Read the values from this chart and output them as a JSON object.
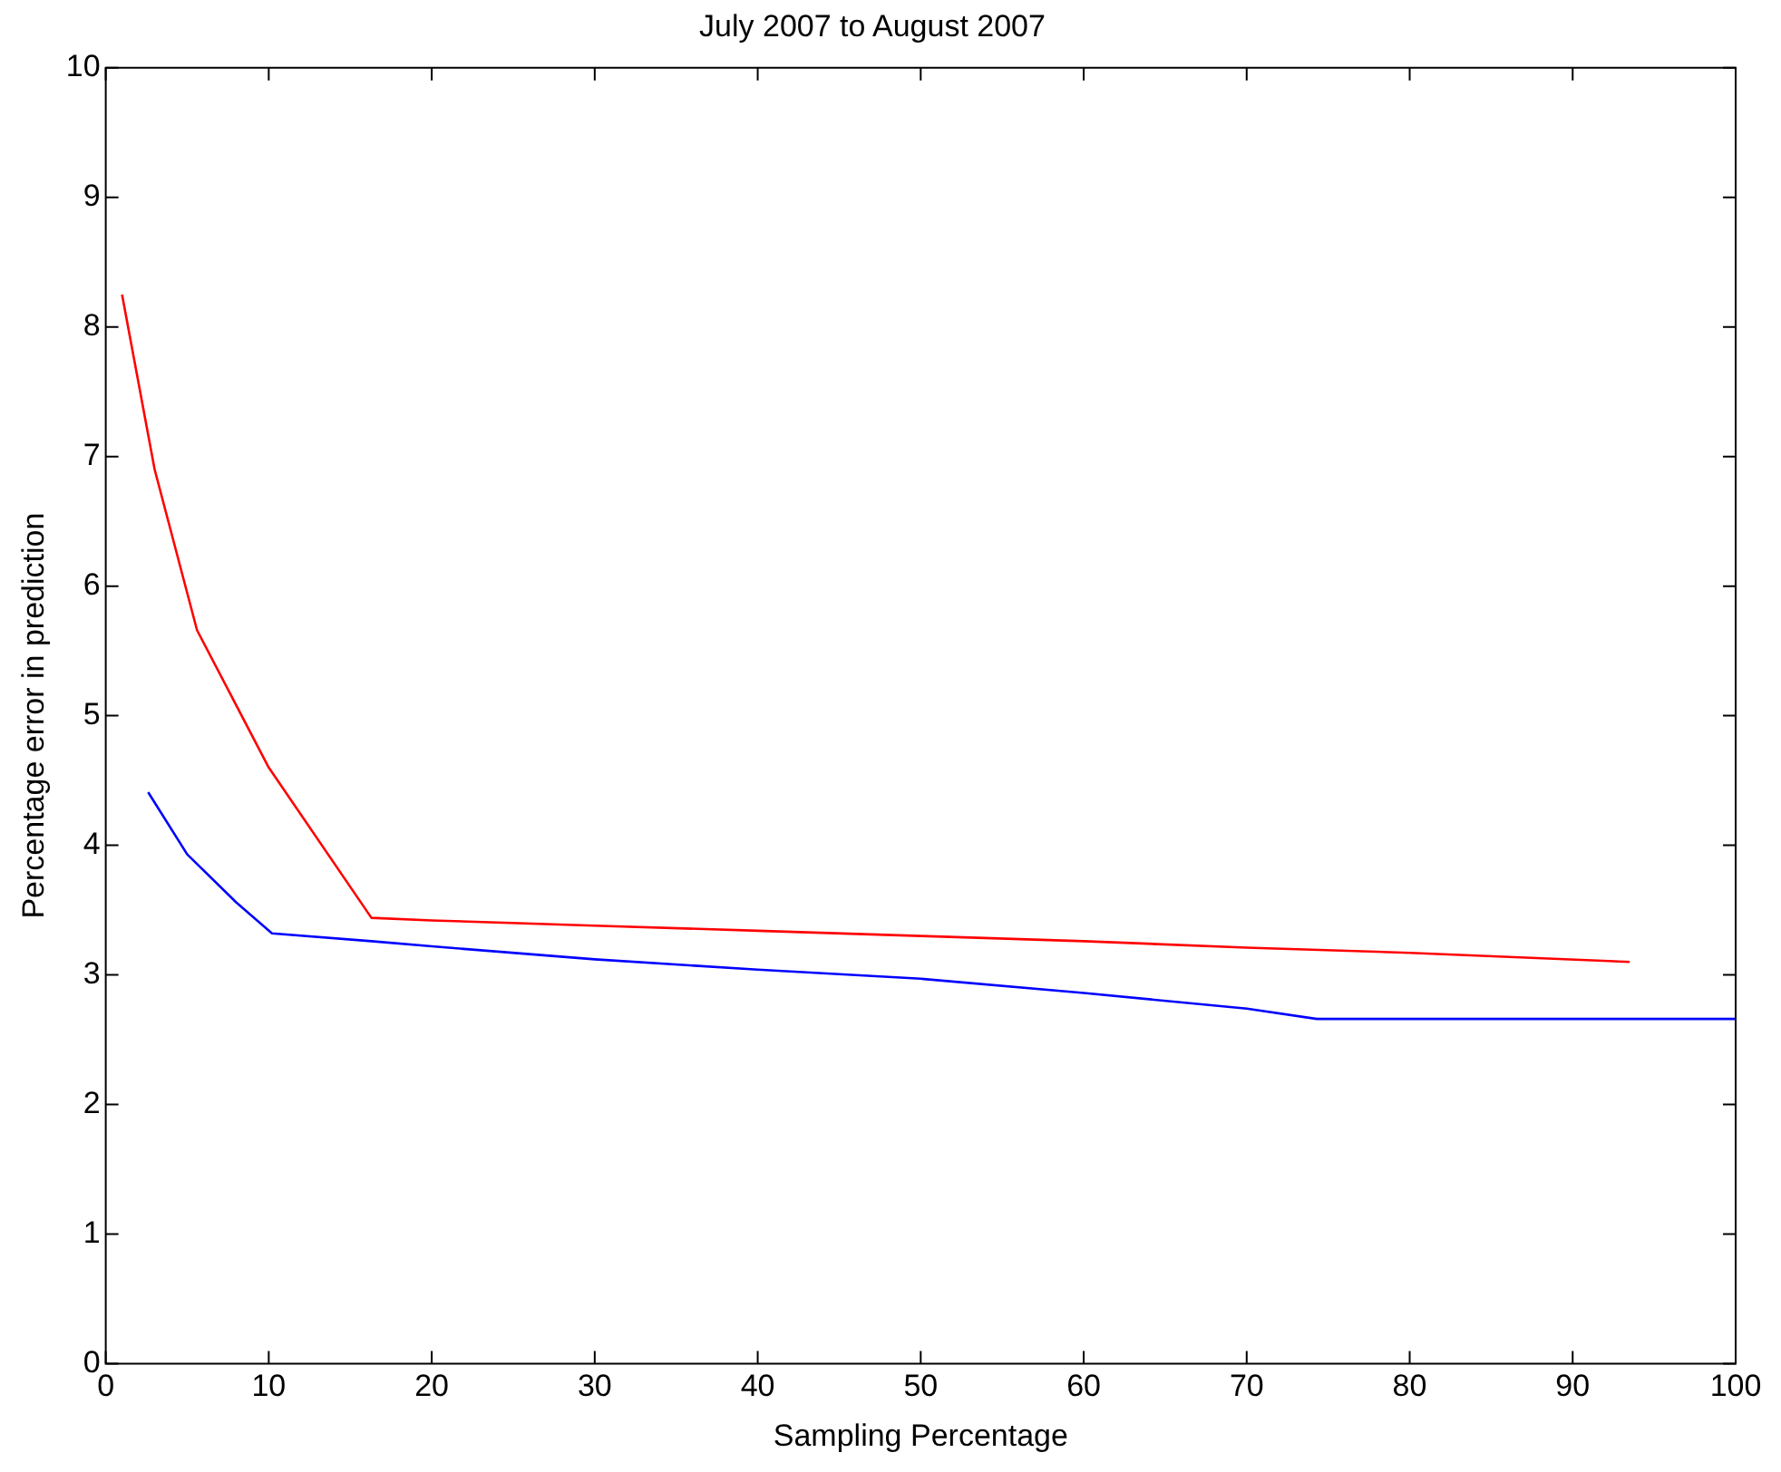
{
  "chart_data": {
    "type": "line",
    "title": "July 2007 to August 2007",
    "xlabel": "Sampling Percentage",
    "ylabel": "Percentage error in prediction",
    "series": [
      {
        "color": "#ff0000",
        "x": [
          1.0,
          3,
          5.6,
          10,
          16.3,
          20,
          30,
          40,
          50,
          60,
          70,
          80,
          93.5
        ],
        "values": [
          8.25,
          6.9,
          5.66,
          4.6,
          3.44,
          3.42,
          3.38,
          3.34,
          3.3,
          3.26,
          3.21,
          3.17,
          3.1
        ]
      },
      {
        "color": "#0000ff",
        "x": [
          2.6,
          5,
          8,
          10.2,
          16.3,
          20,
          30,
          40,
          50,
          60,
          70,
          74.3,
          100
        ],
        "values": [
          4.41,
          3.93,
          3.56,
          3.32,
          3.26,
          3.22,
          3.12,
          3.04,
          2.97,
          2.86,
          2.74,
          2.66,
          2.66
        ]
      }
    ],
    "xlim": [
      0,
      100
    ],
    "xticks": [
      0,
      10,
      20,
      30,
      40,
      50,
      60,
      70,
      80,
      90,
      100
    ],
    "ylim": [
      0,
      10
    ],
    "yticks": [
      0,
      1,
      2,
      3,
      4,
      5,
      6,
      7,
      8,
      9,
      10
    ],
    "grid": false,
    "legend": false,
    "marker": "none",
    "line_style": "solid"
  }
}
